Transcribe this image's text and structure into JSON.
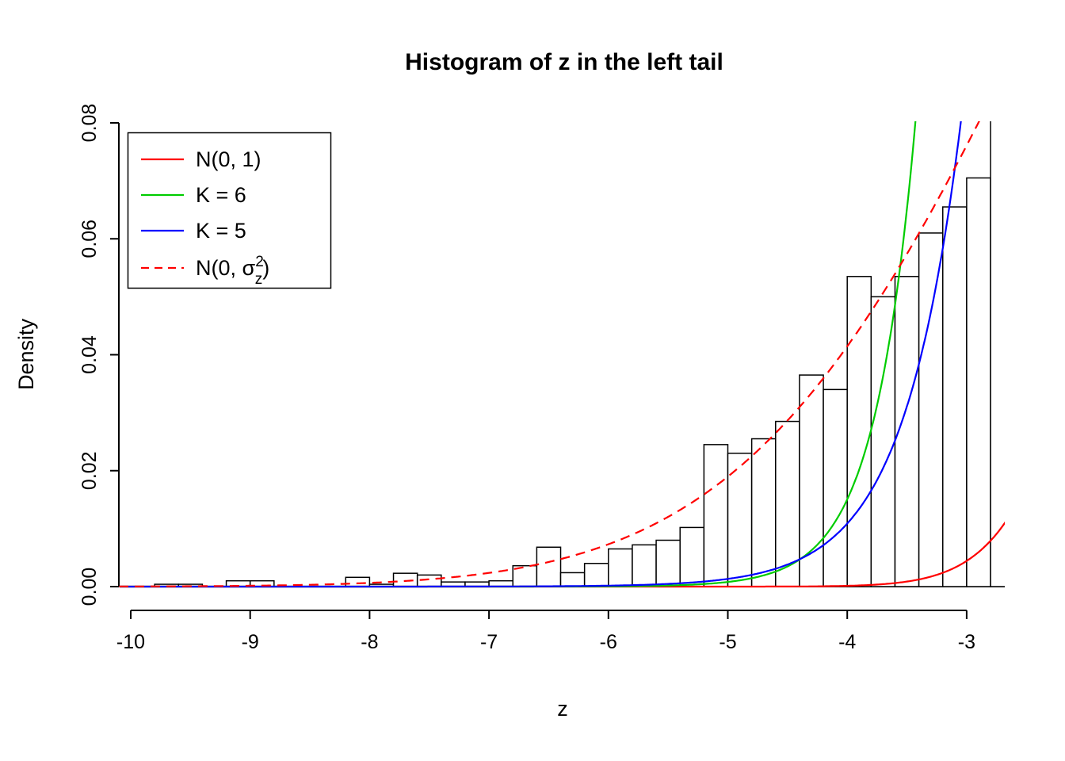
{
  "title": "Histogram of z in the left tail",
  "colors": {
    "red": "#FF0000",
    "green": "#00CC00",
    "blue": "#0000FF",
    "black": "#000000",
    "background": "#FFFFFF"
  },
  "legend": {
    "position": "top-left",
    "entries": [
      {
        "label": "N(0, 1)",
        "color": "#FF0000",
        "style": "solid"
      },
      {
        "label": "K = 6",
        "color": "#00CC00",
        "style": "solid"
      },
      {
        "label": "K = 5",
        "color": "#0000FF",
        "style": "solid"
      },
      {
        "label": "N(0, σz²)",
        "label_parts": {
          "prefix": "N(0, ",
          "base": "σ",
          "sup": "2",
          "sub": "z",
          "suffix": ")"
        },
        "color": "#FF0000",
        "style": "dashed"
      }
    ]
  },
  "chart_data": {
    "type": "histogram_with_density_curves",
    "title": "Histogram of z in the left tail",
    "xlabel": "z",
    "ylabel": "Density",
    "xlim": [
      -10.1,
      -2.67
    ],
    "ylim": [
      0,
      0.08
    ],
    "x_ticks": [
      -10,
      -9,
      -8,
      -7,
      -6,
      -5,
      -4,
      -3
    ],
    "y_ticks": [
      0,
      0.02,
      0.04,
      0.06,
      0.08
    ],
    "y_tick_labels": [
      "0.00",
      "0.02",
      "0.04",
      "0.06",
      "0.08"
    ],
    "grid": false,
    "bar_fill": "#FFFFFF",
    "bar_stroke": "#000000",
    "bin_width": 0.2,
    "bin_left": [
      -10.0,
      -9.8,
      -9.6,
      -9.4,
      -9.2,
      -9.0,
      -8.8,
      -8.6,
      -8.4,
      -8.2,
      -8.0,
      -7.8,
      -7.6,
      -7.4,
      -7.2,
      -7.0,
      -6.8,
      -6.6,
      -6.4,
      -6.2,
      -6.0,
      -5.8,
      -5.6,
      -5.4,
      -5.2,
      -5.0,
      -4.8,
      -4.6,
      -4.4,
      -4.2,
      -4.0,
      -3.8,
      -3.6,
      -3.4,
      -3.2,
      -3.0,
      -2.8
    ],
    "density": [
      0,
      0.0004,
      0.0004,
      0,
      0.001,
      0.001,
      0,
      0,
      0,
      0.0016,
      0.0004,
      0.0023,
      0.002,
      0.0008,
      0.0008,
      0.001,
      0.0036,
      0.0068,
      0.0024,
      0.004,
      0.0065,
      0.0072,
      0.008,
      0.0102,
      0.0245,
      0.023,
      0.0255,
      0.0285,
      0.0365,
      0.034,
      0.0535,
      0.05,
      0.0535,
      0.061,
      0.0655,
      0.0705,
      0.083
    ],
    "curves": [
      {
        "name": "N(0, 1)",
        "color": "#FF0000",
        "style": "solid",
        "model": {
          "type": "normal",
          "mean": 0,
          "sd": 1
        }
      },
      {
        "name": "K = 6",
        "color": "#00CC00",
        "style": "solid",
        "model": {
          "type": "exp_growth",
          "a": 0.08,
          "b": 2.93,
          "x0": -3.43
        }
      },
      {
        "name": "K = 5",
        "color": "#0000FF",
        "style": "solid",
        "model": {
          "type": "exp_growth",
          "a": 0.08,
          "b": 2.1,
          "x0": -3.05
        }
      },
      {
        "name": "N(0, σz²)",
        "color": "#FF0000",
        "style": "dashed",
        "model": {
          "type": "normal",
          "mean": 0,
          "sd": 2.4
        }
      }
    ]
  }
}
